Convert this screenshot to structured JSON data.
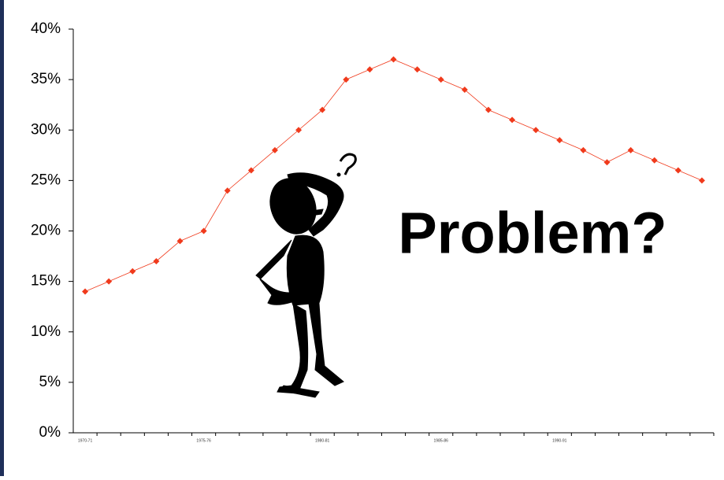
{
  "chart_data": {
    "type": "line",
    "categories": [
      "1970-71",
      null,
      null,
      null,
      null,
      "1975-76",
      null,
      null,
      null,
      null,
      "1980-81",
      null,
      null,
      null,
      null,
      "1985-86",
      null,
      null,
      null,
      null,
      "1990-91",
      null,
      null,
      null,
      null,
      null,
      null
    ],
    "series": [
      {
        "color": "#f03a1c",
        "values": [
          14,
          15,
          16,
          17,
          19,
          20,
          24,
          26,
          28,
          30,
          32,
          35,
          36,
          37,
          36,
          35,
          34,
          32,
          31,
          30,
          29,
          28,
          26.8,
          28,
          27,
          26,
          25
        ]
      }
    ],
    "ylim": [
      0,
      40
    ],
    "yticks": [
      {
        "value": 0,
        "label": "0%"
      },
      {
        "value": 5,
        "label": "5%"
      },
      {
        "value": 10,
        "label": "10%"
      },
      {
        "value": 15,
        "label": "15%"
      },
      {
        "value": 20,
        "label": "20%"
      },
      {
        "value": 25,
        "label": "25%"
      },
      {
        "value": 30,
        "label": "30%"
      },
      {
        "value": 35,
        "label": "35%"
      },
      {
        "value": 40,
        "label": "40%"
      }
    ],
    "annotation": "Problem?"
  }
}
